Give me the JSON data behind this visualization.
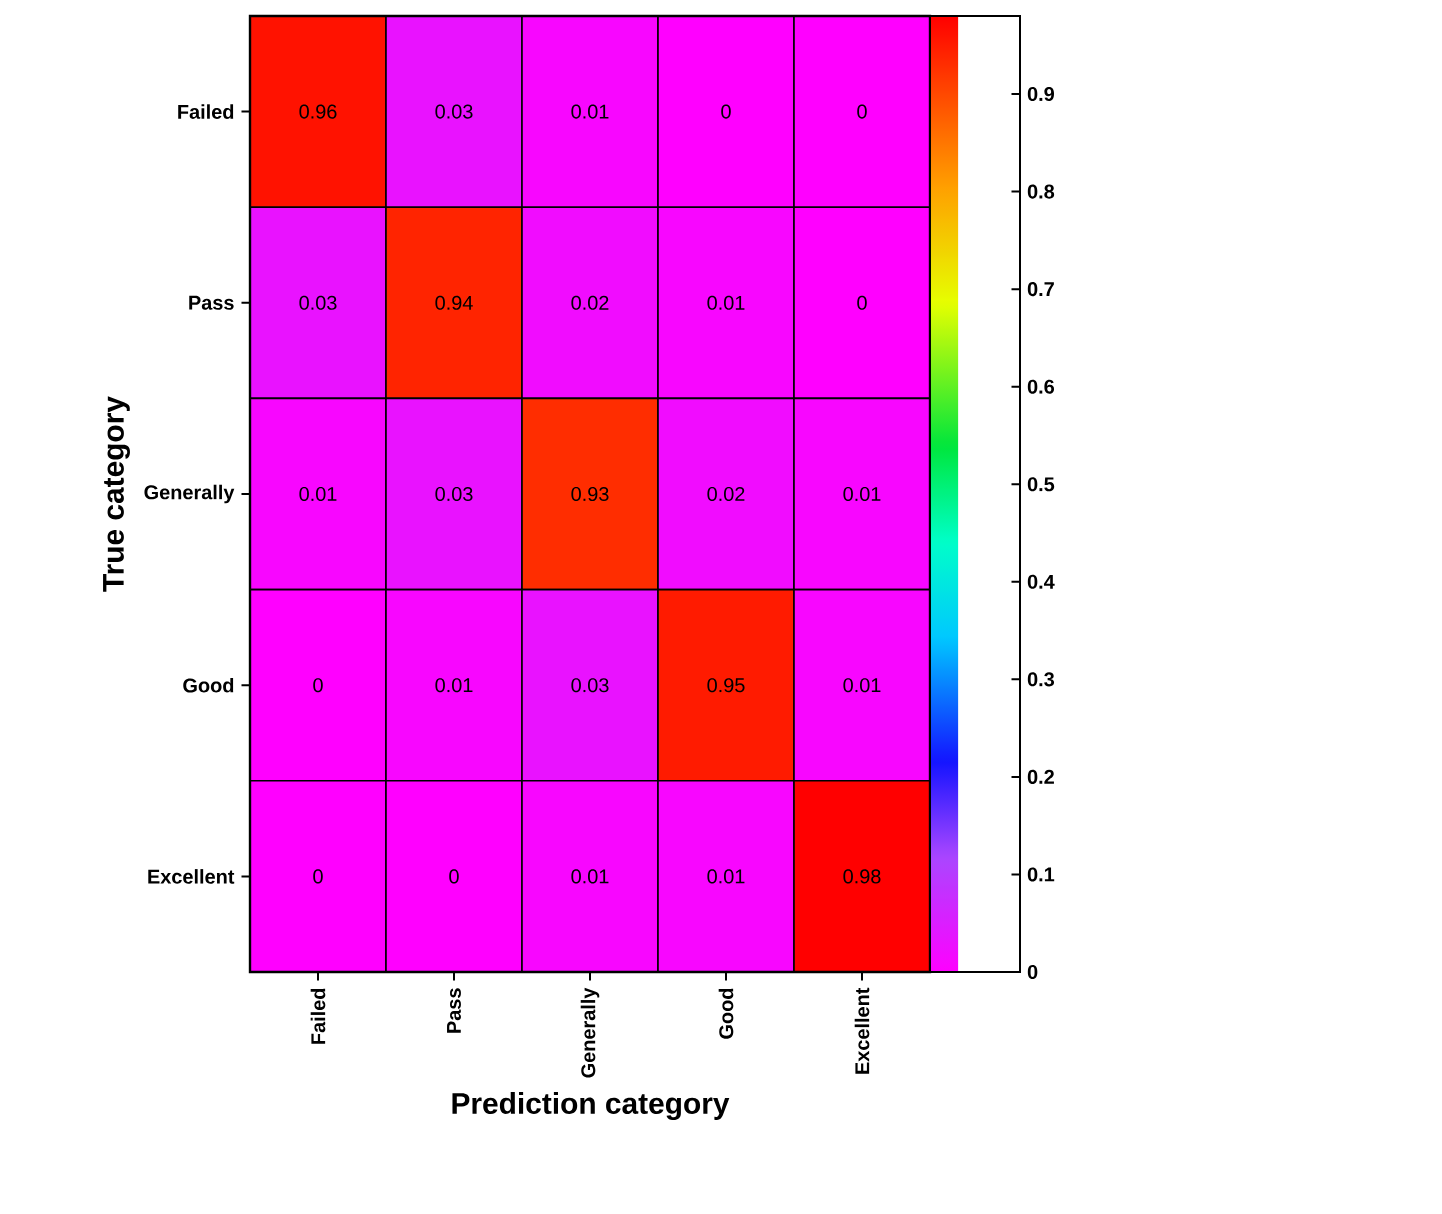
{
  "chart_data": {
    "type": "heatmap",
    "xlabel": "Prediction category",
    "ylabel": "True category",
    "categories": [
      "Failed",
      "Pass",
      "Generally",
      "Good",
      "Excellent"
    ],
    "y_categories": [
      "Failed",
      "Pass",
      "Generally",
      "Good",
      "Excellent"
    ],
    "cells": [
      [
        0.96,
        0.03,
        0.01,
        0,
        0
      ],
      [
        0.03,
        0.94,
        0.02,
        0.01,
        0
      ],
      [
        0.01,
        0.03,
        0.93,
        0.02,
        0.01
      ],
      [
        0,
        0.01,
        0.03,
        0.95,
        0.01
      ],
      [
        0,
        0,
        0.01,
        0.01,
        0.98
      ]
    ],
    "clim": [
      0,
      0.98
    ],
    "cticks": [
      0,
      0.1,
      0.2,
      0.3,
      0.4,
      0.5,
      0.6,
      0.7,
      0.8,
      0.9
    ],
    "data_labels": true
  }
}
